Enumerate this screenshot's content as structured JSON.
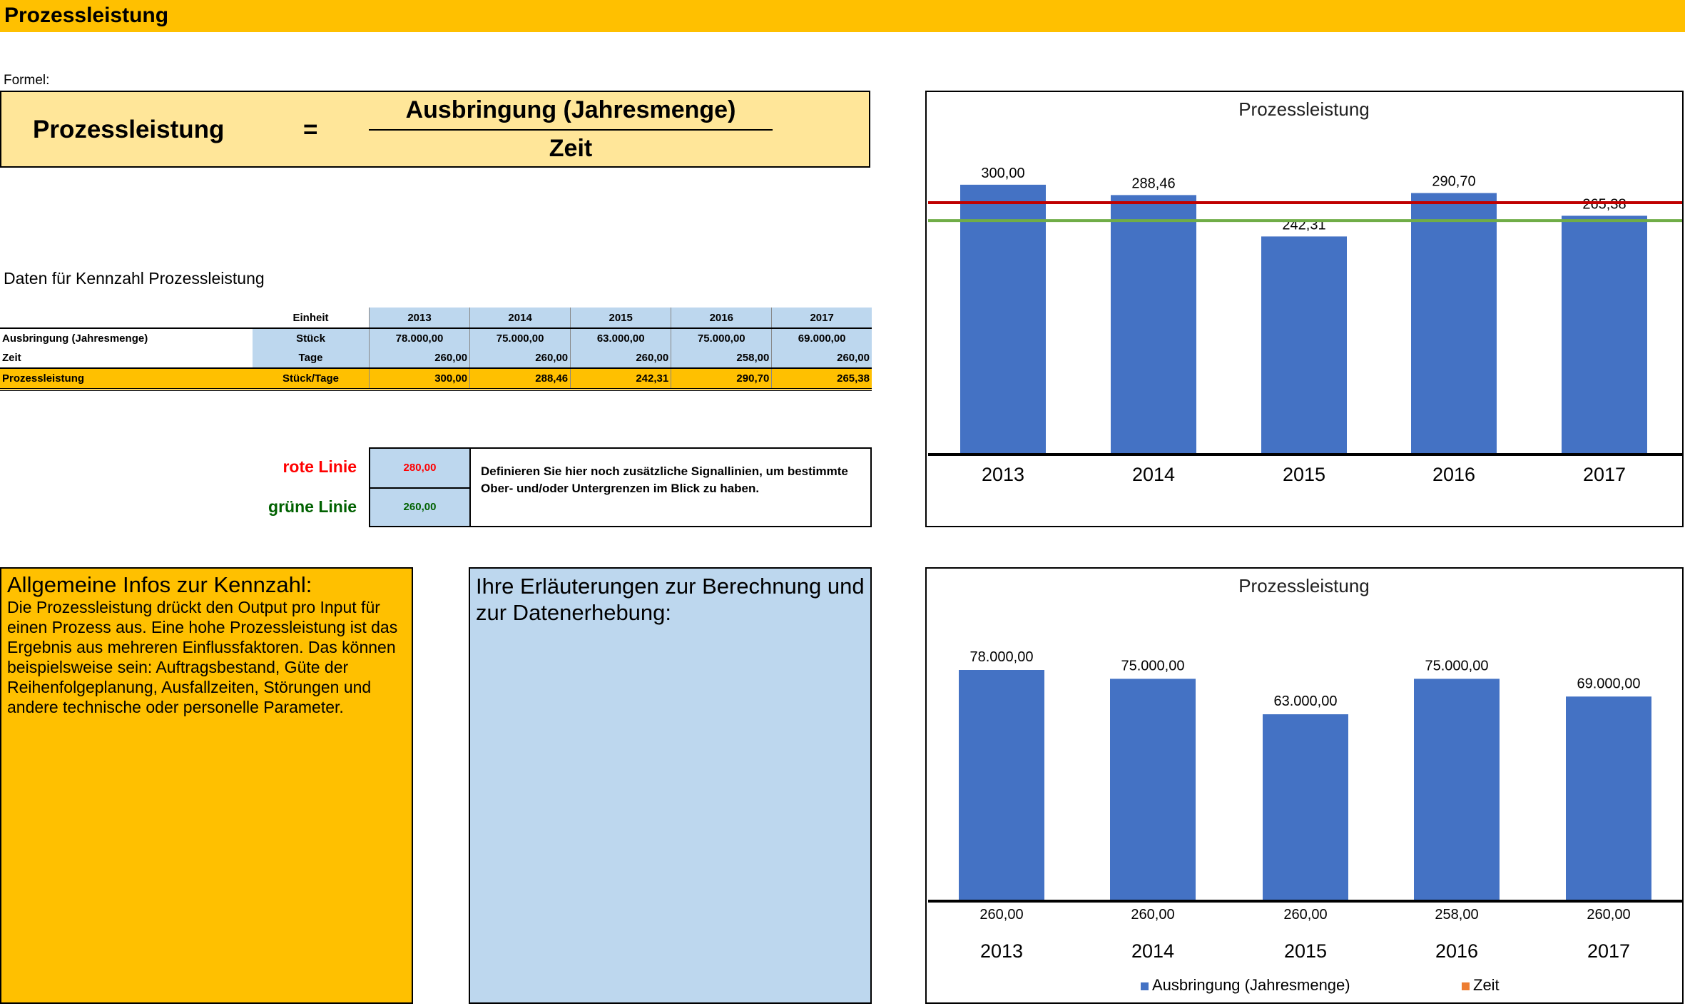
{
  "header": {
    "title": "Prozessleistung"
  },
  "formula": {
    "label": "Formel:",
    "lhs": "Prozessleistung",
    "eq": "=",
    "numerator": "Ausbringung (Jahresmenge)",
    "denominator": "Zeit"
  },
  "data_title": "Daten für Kennzahl Prozessleistung",
  "table": {
    "unit_header": "Einheit",
    "years": [
      "2013",
      "2014",
      "2015",
      "2016",
      "2017"
    ],
    "rows": [
      {
        "label": "Ausbringung (Jahresmenge)",
        "unit": "Stück",
        "values": [
          "78.000,00",
          "75.000,00",
          "63.000,00",
          "75.000,00",
          "69.000,00"
        ]
      },
      {
        "label": "Zeit",
        "unit": "Tage",
        "values": [
          "260,00",
          "260,00",
          "260,00",
          "258,00",
          "260,00"
        ]
      },
      {
        "label": "Prozessleistung",
        "unit": "Stück/Tage",
        "values": [
          "300,00",
          "288,46",
          "242,31",
          "290,70",
          "265,38"
        ]
      }
    ]
  },
  "signals": {
    "red_label": "rote Linie",
    "red_value": "280,00",
    "green_label": "grüne Linie",
    "green_value": "260,00",
    "note": "Definieren Sie hier noch zusätzliche Signallinien, um bestimmte Ober- und/oder Untergrenzen im Blick zu haben.",
    "red_color": "#C00000",
    "green_color": "#70AD47"
  },
  "info": {
    "title": "Allgemeine Infos zur Kennzahl:",
    "text": "Die Prozessleistung drückt den Output pro Input für einen Prozess aus. Eine hohe Prozessleistung ist das Ergebnis aus mehreren Einflussfaktoren. Das können beispielsweise sein: Auftragsbestand, Güte der Reihenfolgeplanung, Ausfallzeiten, Störungen und andere technische oder personelle Parameter."
  },
  "notes": {
    "title": "Ihre Erläuterungen zur Berechnung und zur Datenerhebung:"
  },
  "chart_data": [
    {
      "type": "bar",
      "title": "Prozessleistung",
      "categories": [
        "2013",
        "2014",
        "2015",
        "2016",
        "2017"
      ],
      "values": [
        300.0,
        288.46,
        242.31,
        290.7,
        265.38
      ],
      "labels": [
        "300,00",
        "288,46",
        "242,31",
        "290,70",
        "265,38"
      ],
      "reference_lines": [
        {
          "value": 280,
          "color": "#C00000"
        },
        {
          "value": 260,
          "color": "#70AD47"
        }
      ],
      "bar_color": "#4472C4",
      "grid": false
    },
    {
      "type": "bar",
      "title": "Prozessleistung",
      "categories": [
        "2013",
        "2014",
        "2015",
        "2016",
        "2017"
      ],
      "series": [
        {
          "name": "Ausbringung (Jahresmenge)",
          "values": [
            78000,
            75000,
            63000,
            75000,
            69000
          ],
          "labels": [
            "78.000,00",
            "75.000,00",
            "63.000,00",
            "75.000,00",
            "69.000,00"
          ],
          "color": "#4472C4"
        },
        {
          "name": "Zeit",
          "values": [
            260,
            260,
            260,
            258,
            260
          ],
          "labels": [
            "260,00",
            "260,00",
            "260,00",
            "258,00",
            "260,00"
          ],
          "color": "#ED7D31"
        }
      ],
      "legend": "bottom",
      "grid": false
    }
  ]
}
